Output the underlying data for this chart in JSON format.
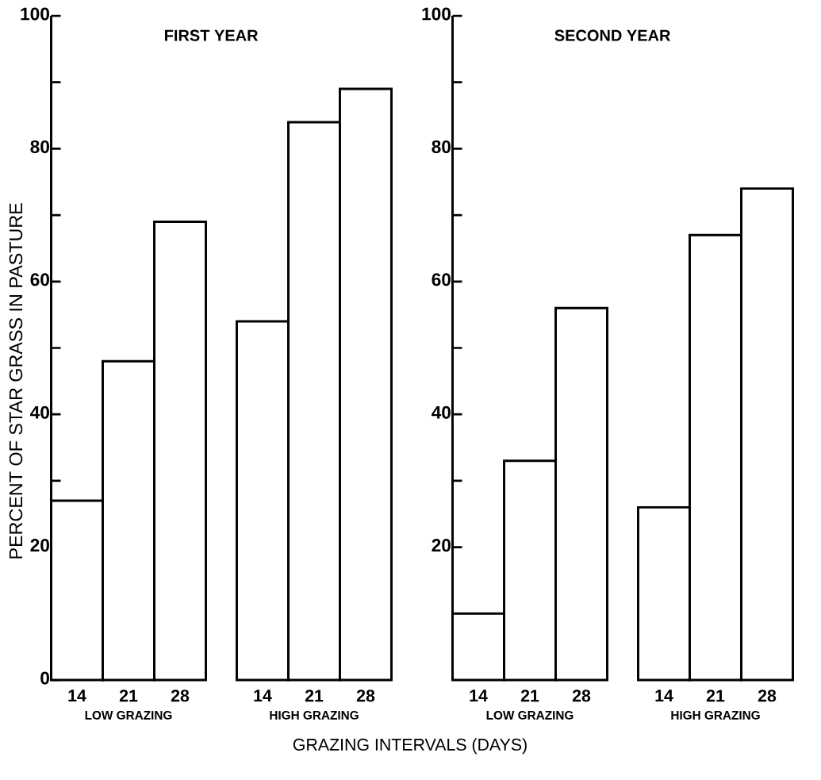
{
  "chart_data": [
    {
      "type": "bar",
      "title": "FIRST YEAR",
      "ylabel": "PERCENT OF STAR GRASS IN PASTURE",
      "xlabel": "GRAZING INTERVALS (DAYS)",
      "categories": [
        "14",
        "21",
        "28",
        "14",
        "21",
        "28"
      ],
      "values": [
        27,
        48,
        69,
        54,
        84,
        89
      ],
      "color": "#000000",
      "ylim": [
        0,
        100
      ],
      "yticks": [
        0,
        {
          "value": 10,
          "label": null
        },
        20,
        {
          "value": 30,
          "label": null
        },
        40,
        {
          "value": 50,
          "label": null
        },
        60,
        {
          "value": 70,
          "label": null
        },
        80,
        {
          "value": 90,
          "label": null
        },
        100
      ],
      "annotations": [
        "LOW GRAZING",
        "HIGH GRAZING"
      ]
    },
    {
      "type": "bar",
      "title": "SECOND YEAR",
      "categories": [
        "14",
        "21",
        "28",
        "14",
        "21",
        "28"
      ],
      "values": [
        10,
        33,
        56,
        26,
        67,
        74
      ],
      "color": "#000000",
      "ylim": [
        0,
        100
      ],
      "yticks": [
        {
          "value": 10,
          "label": null
        },
        20,
        {
          "value": 30,
          "label": null
        },
        40,
        {
          "value": 50,
          "label": null
        },
        60,
        {
          "value": 70,
          "label": null
        },
        80,
        {
          "value": 90,
          "label": null
        },
        100
      ],
      "annotations": [
        "LOW GRAZING",
        "HIGH GRAZING"
      ]
    }
  ]
}
